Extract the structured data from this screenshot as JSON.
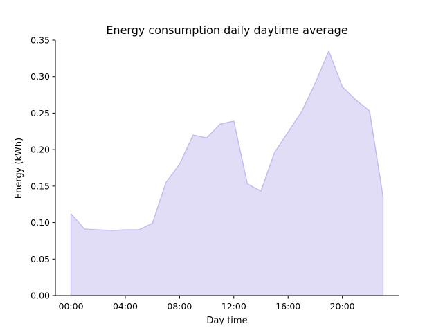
{
  "chart_data": {
    "type": "area",
    "title": "Energy consumption daily daytime average",
    "xlabel": "Day time",
    "ylabel": "Energy (kWh)",
    "x_tick_labels": [
      "00:00",
      "04:00",
      "08:00",
      "12:00",
      "16:00",
      "20:00"
    ],
    "x_tick_hours": [
      0,
      4,
      8,
      12,
      16,
      20
    ],
    "y_tick_labels": [
      "0.00",
      "0.05",
      "0.10",
      "0.15",
      "0.20",
      "0.25",
      "0.30",
      "0.35"
    ],
    "y_ticks": [
      0,
      0.05,
      0.1,
      0.15,
      0.2,
      0.25,
      0.3,
      0.35
    ],
    "xlim_hours": [
      -1.15,
      24.15
    ],
    "ylim": [
      0,
      0.35
    ],
    "grid": false,
    "legend": "none",
    "colors": {
      "fill": "#e2ddf6",
      "line": "#c4bcec",
      "axis": "#000000"
    },
    "series": [
      {
        "x_hours": [
          0,
          1,
          2,
          3,
          4,
          5,
          6,
          7,
          8,
          9,
          10,
          11,
          12,
          13,
          14,
          15,
          16,
          17,
          18,
          19,
          20,
          21,
          22,
          23
        ],
        "values": [
          0.112,
          0.091,
          0.09,
          0.089,
          0.09,
          0.09,
          0.099,
          0.155,
          0.18,
          0.22,
          0.216,
          0.235,
          0.239,
          0.153,
          0.143,
          0.196,
          0.224,
          0.252,
          0.291,
          0.335,
          0.286,
          0.268,
          0.253,
          0.135
        ]
      }
    ]
  }
}
